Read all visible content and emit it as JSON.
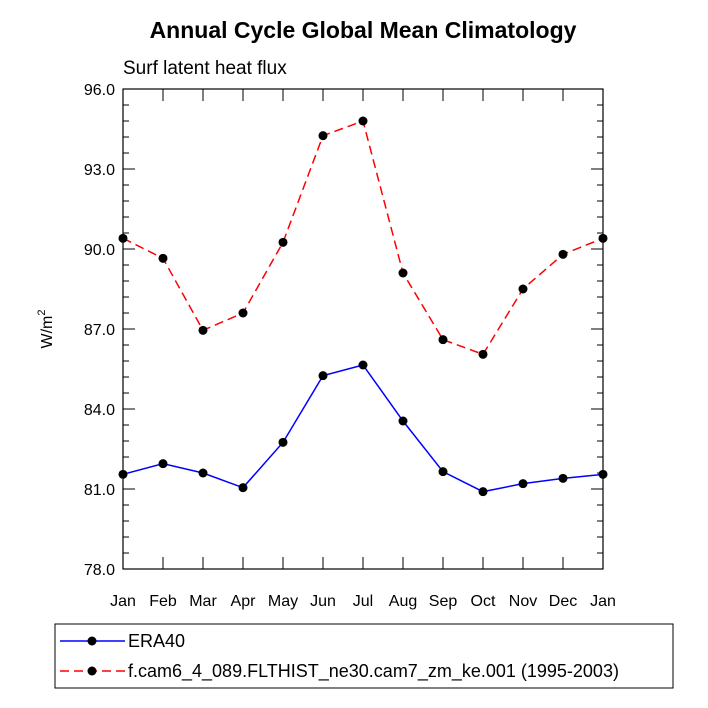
{
  "chart_data": {
    "type": "line",
    "title": "Annual Cycle Global Mean Climatology",
    "subtitle": "Surf latent heat flux",
    "ylabel": "W/m",
    "ylabel_sup": "2",
    "xlabel": "",
    "categories": [
      "Jan",
      "Feb",
      "Mar",
      "Apr",
      "May",
      "Jun",
      "Jul",
      "Aug",
      "Sep",
      "Oct",
      "Nov",
      "Dec",
      "Jan"
    ],
    "ylim": [
      78.0,
      96.0
    ],
    "yticks": [
      "78.0",
      "81.0",
      "84.0",
      "87.0",
      "90.0",
      "93.0",
      "96.0"
    ],
    "series": [
      {
        "name": "ERA40",
        "color": "#0000ff",
        "style": "solid",
        "values": [
          81.55,
          81.95,
          81.6,
          81.05,
          82.75,
          85.25,
          85.65,
          83.55,
          81.65,
          80.9,
          81.2,
          81.4,
          81.55
        ]
      },
      {
        "name": "f.cam6_4_089.FLTHIST_ne30.cam7_zm_ke.001 (1995-2003)",
        "color": "#ff0000",
        "style": "dashed",
        "values": [
          90.4,
          89.65,
          86.95,
          87.6,
          90.25,
          94.25,
          94.8,
          89.1,
          86.6,
          86.05,
          88.5,
          89.8,
          90.4
        ]
      }
    ],
    "legend_position": "bottom"
  }
}
